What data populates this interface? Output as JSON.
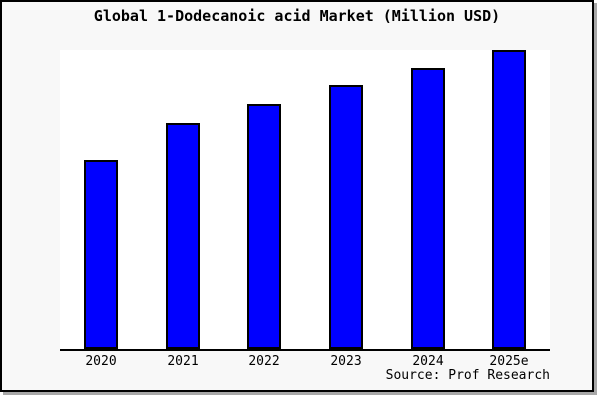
{
  "figure": {
    "background_color": "#f8f8f8",
    "plot_background_color": "#ffffff",
    "border_color": "#000000",
    "axis_color": "#000000"
  },
  "chart_data": {
    "type": "bar",
    "title": "Global 1-Dodecanoic acid Market (Million USD)",
    "categories": [
      "2020",
      "2021",
      "2022",
      "2023",
      "2024",
      "2025e"
    ],
    "values": [
      190,
      227,
      246,
      265,
      282,
      300
    ],
    "xlabel": "",
    "ylabel": "",
    "ylim": [
      0,
      300
    ],
    "grid": false,
    "legend": false,
    "bar_color": "#0000ff",
    "bar_border_color": "#000000",
    "source_note": "Source: Prof Research"
  }
}
